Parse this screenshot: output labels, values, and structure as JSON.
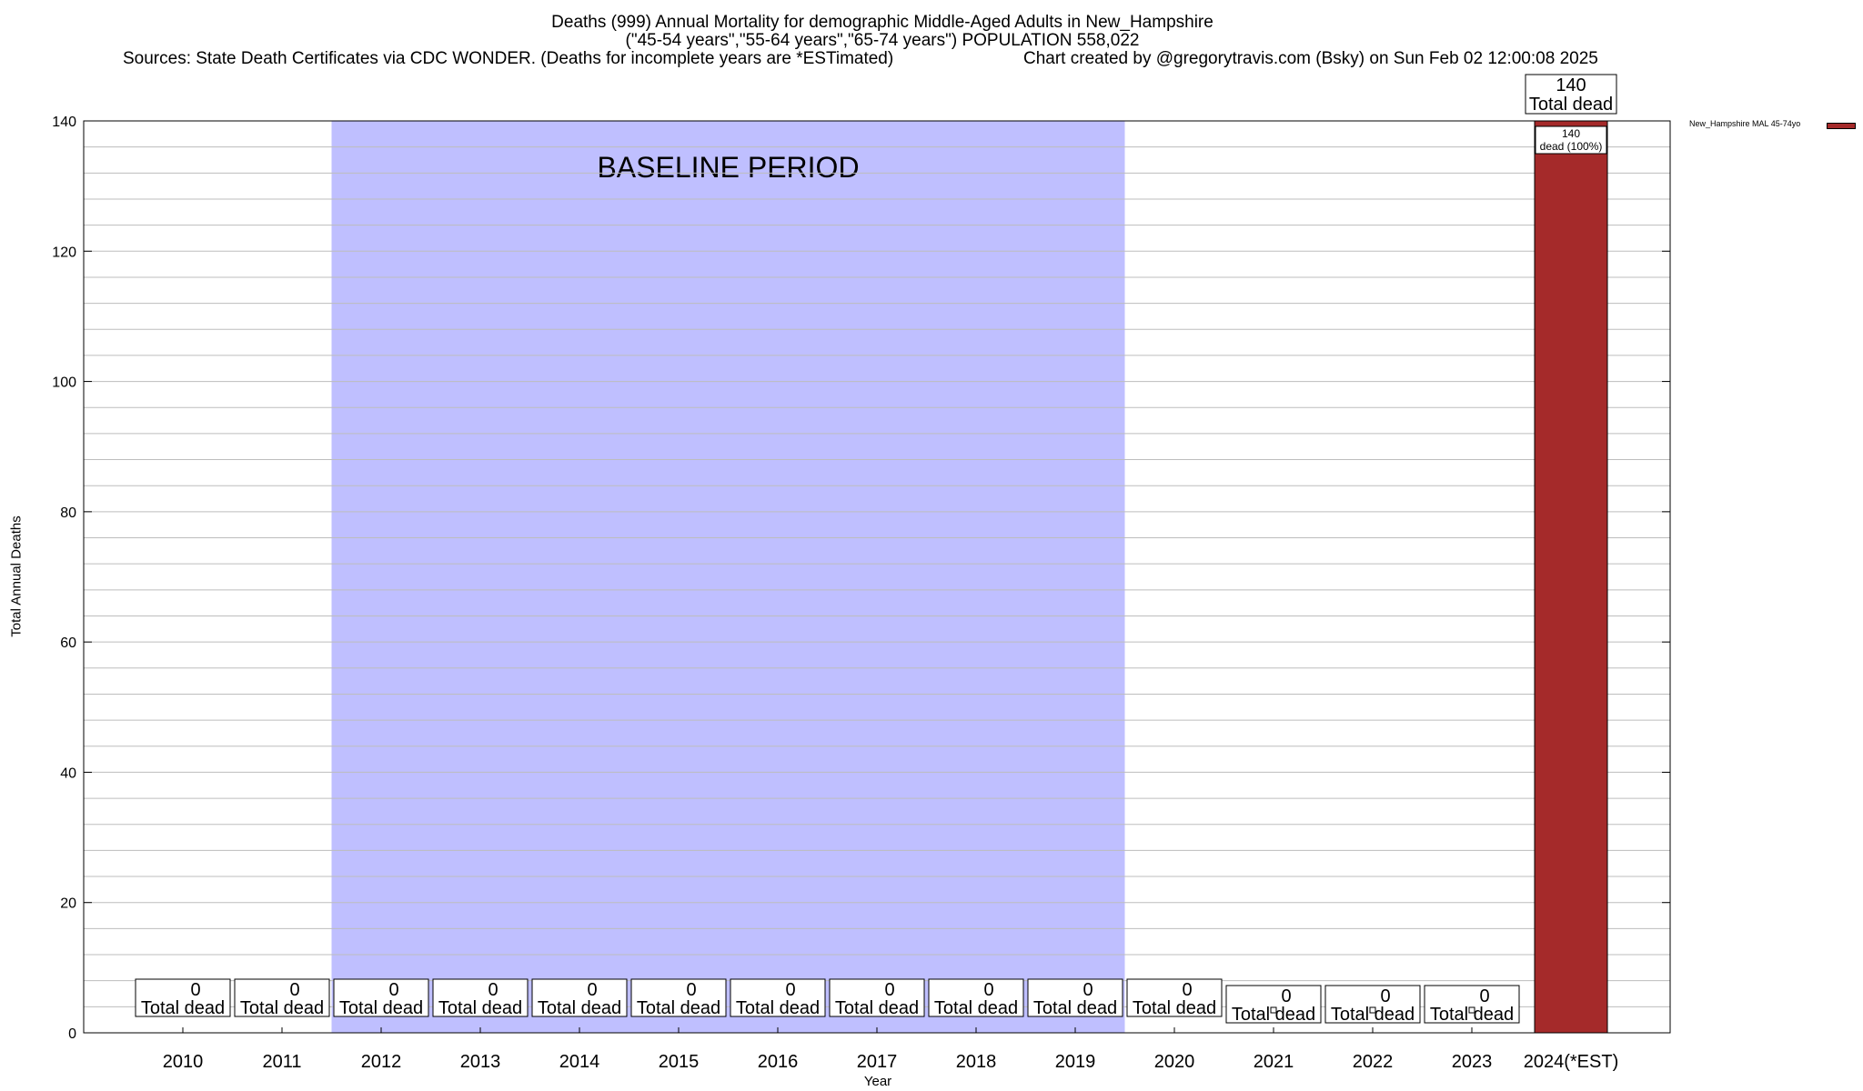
{
  "title": {
    "line1": "Deaths (999) Annual Mortality for demographic Middle-Aged Adults in New_Hampshire",
    "line2": "(\"45-54 years\",\"55-64 years\",\"65-74 years\") POPULATION 558,022",
    "sources": "Sources: State Death Certificates via CDC WONDER. (Deaths for incomplete years are *ESTimated)",
    "credit": "Chart created by @gregorytravis.com (Bsky) on Sun Feb 02 12:00:08 2025"
  },
  "chart_data": {
    "type": "bar",
    "xlabel": "Year",
    "ylabel": "Total Annual Deaths",
    "ylim": [
      0,
      140
    ],
    "yticks": [
      0,
      20,
      40,
      60,
      80,
      100,
      120,
      140
    ],
    "grid": true,
    "legend_position": "top-right",
    "categories": [
      "2010",
      "2011",
      "2012",
      "2013",
      "2014",
      "2015",
      "2016",
      "2017",
      "2018",
      "2019",
      "2020",
      "2021",
      "2022",
      "2023",
      "2024(*EST)"
    ],
    "series": [
      {
        "name": "New_Hampshire MAL 45-74yo",
        "color": "#a52a2a",
        "values": [
          0,
          0,
          0,
          0,
          0,
          0,
          0,
          0,
          0,
          0,
          0,
          0,
          0,
          0,
          140
        ]
      }
    ],
    "total_label_text": "Total dead",
    "segment_label": {
      "value": "140",
      "text": "dead (100%)"
    },
    "baseline": {
      "label": "BASELINE PERIOD",
      "from": "2012",
      "to": "2019",
      "color": "#bfbfff"
    }
  }
}
